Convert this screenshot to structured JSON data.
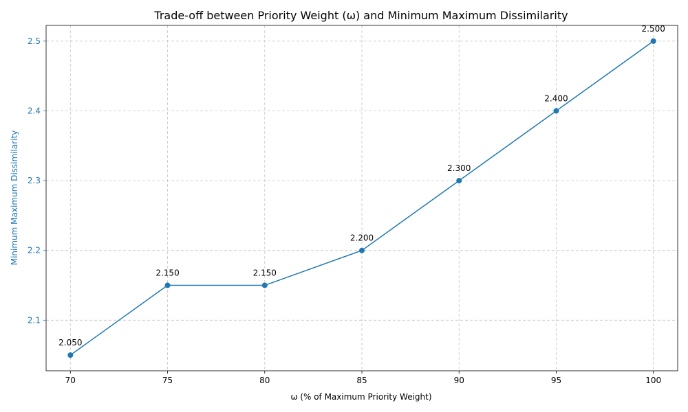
{
  "chart_data": {
    "type": "line",
    "title": "Trade-off between Priority Weight (ω) and Minimum Maximum Dissimilarity",
    "xlabel": "ω (% of Maximum Priority Weight)",
    "ylabel": "Minimum Maximum Dissimilarity",
    "x": [
      70,
      75,
      80,
      85,
      90,
      95,
      100
    ],
    "series": [
      {
        "values": [
          2.05,
          2.15,
          2.15,
          2.2,
          2.3,
          2.4,
          2.5
        ],
        "data_labels": [
          "2.050",
          "2.150",
          "2.150",
          "2.200",
          "2.300",
          "2.400",
          "2.500"
        ],
        "color": "#1f77b4",
        "marker": "circle"
      }
    ],
    "xticks": [
      70,
      75,
      80,
      85,
      90,
      95,
      100
    ],
    "xtick_labels": [
      "70",
      "75",
      "80",
      "85",
      "90",
      "95",
      "100"
    ],
    "yticks": [
      2.1,
      2.2,
      2.3,
      2.4,
      2.5
    ],
    "ytick_labels": [
      "2.1",
      "2.2",
      "2.3",
      "2.4",
      "2.5"
    ],
    "xlim": [
      68.75,
      101.25
    ],
    "ylim": [
      2.0275,
      2.5225
    ],
    "grid": true,
    "axis_color": "#1f77b4"
  }
}
